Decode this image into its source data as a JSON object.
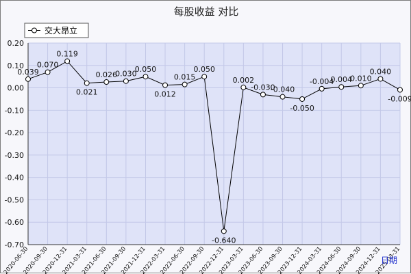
{
  "chart_data": {
    "type": "line",
    "title": "每股收益  对比",
    "x_axis_name": "日期",
    "ylim": [
      -0.7,
      0.2
    ],
    "y_ticks": [
      "0.20",
      "0.10",
      "0.00",
      "-0.10",
      "-0.20",
      "-0.30",
      "-0.40",
      "-0.50",
      "-0.60",
      "-0.70"
    ],
    "categories": [
      "2020-06-30",
      "2020-09-30",
      "2020-12-31",
      "2021-03-31",
      "2021-06-30",
      "2021-09-30",
      "2021-12-31",
      "2022-03-31",
      "2022-06-30",
      "2022-09-30",
      "2022-12-31",
      "2023-03-31",
      "2023-06-30",
      "2023-09-30",
      "2023-12-31",
      "2024-03-31",
      "2024-06-30",
      "2024-09-30",
      "2024-12-31",
      "2025-03-31"
    ],
    "series": [
      {
        "name": "交大昂立",
        "values": [
          0.039,
          0.07,
          0.119,
          0.021,
          0.026,
          0.03,
          0.05,
          0.012,
          0.015,
          0.05,
          -0.64,
          0.002,
          -0.03,
          -0.04,
          -0.05,
          -0.004,
          0.004,
          0.01,
          0.04,
          -0.009
        ],
        "labels": [
          "0.039",
          "0.070",
          "0.119",
          "0.021",
          "0.026",
          "0.030",
          "0.050",
          "0.012",
          "0.015",
          "0.050",
          "-0.640",
          "0.002",
          "-0.030",
          "-0.040",
          "-0.050",
          "-0.004",
          "0.004",
          "0.010",
          "0.040",
          "-0.009"
        ]
      }
    ],
    "grid": true,
    "legend_position": "top-left",
    "colors": {
      "plot_background": "#dfe3f8",
      "page_background": "#f7f7fb",
      "grid": "#c3c8e8",
      "line": "#000000",
      "x_axis_name": "#1c2ccc"
    }
  }
}
